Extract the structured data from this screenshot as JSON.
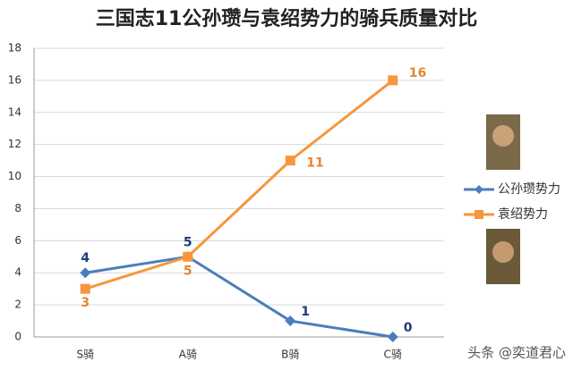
{
  "chart_data": {
    "type": "line",
    "title": "三国志11公孙瓒与袁绍势力的骑兵质量对比",
    "categories": [
      "S骑",
      "A骑",
      "B骑",
      "C骑"
    ],
    "series": [
      {
        "name": "公孙瓒势力",
        "color": "#4a7ebb",
        "label_color": "#1f3a7a",
        "marker": "diamond",
        "values": [
          4,
          5,
          1,
          0
        ]
      },
      {
        "name": "袁绍势力",
        "color": "#f7963c",
        "label_color": "#e5862e",
        "marker": "square",
        "values": [
          3,
          5,
          11,
          16
        ]
      }
    ],
    "ylim": [
      0,
      18
    ],
    "yticks": [
      0,
      2,
      4,
      6,
      8,
      10,
      12,
      14,
      16,
      18
    ],
    "grid": true,
    "watermark": "头条 @奕道君心"
  }
}
